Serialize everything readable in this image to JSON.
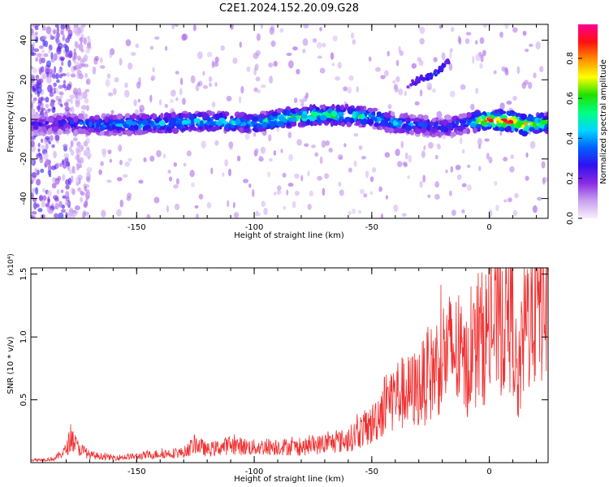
{
  "title": "C2E1.2024.152.20.09.G28",
  "chart_data": [
    {
      "type": "heatmap",
      "xlabel": "Height of straight line (km)",
      "ylabel": "Frequency (Hz)",
      "xlim": [
        -195,
        25
      ],
      "ylim": [
        -50,
        48
      ],
      "xticks": [
        -150,
        -100,
        -50,
        0
      ],
      "xtick_labels": [
        "-150",
        "-100",
        "-50",
        "0"
      ],
      "yticks": [
        -40,
        -20,
        0,
        20,
        40
      ],
      "ytick_labels": [
        "-40",
        "-20",
        "0",
        "20",
        "40"
      ],
      "grid": false,
      "colorbar": {
        "label": "Normalized spectral amplitude",
        "range": [
          0,
          0.97
        ],
        "ticks": [
          0,
          0.2,
          0.4,
          0.6,
          0.8
        ],
        "tick_labels": [
          "0.0",
          "0.2",
          "0.4",
          "0.6",
          "0.8"
        ],
        "colors": [
          "#f8f0fc",
          "#c8a0f0",
          "#8a2be2",
          "#3010f0",
          "#0060ff",
          "#00d8ff",
          "#00ff80",
          "#20e000",
          "#ffff00",
          "#ff9000",
          "#ff1010",
          "#ff0090"
        ]
      },
      "ridge": {
        "x": [
          -195,
          -180,
          -160,
          -140,
          -120,
          -100,
          -85,
          -75,
          -60,
          -50,
          -40,
          -30,
          -20,
          -10,
          0,
          10,
          15,
          20,
          25
        ],
        "y": [
          -3,
          -2,
          -3,
          -2,
          -1,
          -2,
          1,
          2,
          2,
          1,
          -2,
          -3,
          -4,
          -2,
          0,
          -1,
          -3,
          -2,
          -2
        ],
        "amplitude": [
          0.25,
          0.35,
          0.45,
          0.5,
          0.5,
          0.52,
          0.6,
          0.62,
          0.6,
          0.5,
          0.45,
          0.4,
          0.35,
          0.4,
          0.95,
          0.9,
          0.85,
          0.7,
          0.6
        ]
      },
      "secondary_feature": {
        "x": [
          -35,
          -30,
          -25,
          -20,
          -17
        ],
        "y": [
          17,
          20,
          22,
          26,
          30
        ],
        "amplitude": [
          0.2,
          0.25,
          0.3,
          0.28,
          0.2
        ]
      }
    },
    {
      "type": "line",
      "xlabel": "Height of straight line (km)",
      "ylabel": "SNR (10 * v/v)",
      "ylabel_multiplier": "(x10⁴)",
      "xlim": [
        -195,
        25
      ],
      "ylim": [
        0,
        1.55
      ],
      "xticks": [
        -150,
        -100,
        -50,
        0
      ],
      "xtick_labels": [
        "-150",
        "-100",
        "-50",
        "0"
      ],
      "yticks": [
        0.5,
        1.0,
        1.5
      ],
      "ytick_labels": [
        "0.5",
        "1.0",
        "1.5"
      ],
      "color": "#f03030",
      "grid": false,
      "series": [
        {
          "x": [
            -195,
            -185,
            -180,
            -178,
            -175,
            -170,
            -165,
            -160,
            -150,
            -140,
            -130,
            -125,
            -120,
            -110,
            -100,
            -90,
            -80,
            -70,
            -60,
            -55,
            -50,
            -45,
            -40,
            -35,
            -30,
            -25,
            -20,
            -15,
            -10,
            -5,
            0,
            5,
            10,
            12,
            15,
            20,
            25
          ],
          "y": [
            0.02,
            0.03,
            0.1,
            0.2,
            0.12,
            0.06,
            0.05,
            0.04,
            0.05,
            0.07,
            0.08,
            0.15,
            0.1,
            0.14,
            0.12,
            0.13,
            0.12,
            0.15,
            0.18,
            0.25,
            0.3,
            0.45,
            0.55,
            0.55,
            0.6,
            0.7,
            0.85,
            0.9,
            0.75,
            0.95,
            1.05,
            1.15,
            1.2,
            0.55,
            1.1,
            1.3,
            1.4
          ]
        }
      ]
    }
  ]
}
